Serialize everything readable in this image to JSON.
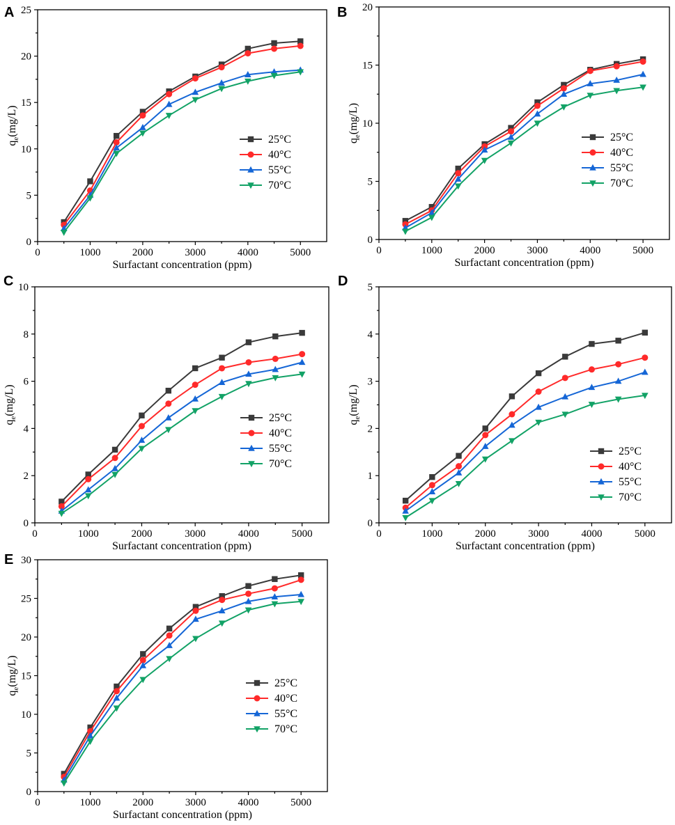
{
  "figure": {
    "series_names": [
      "25°C",
      "40°C",
      "55°C",
      "70°C"
    ],
    "series_colors": [
      "#3a3a3a",
      "#ff2a2a",
      "#1566d6",
      "#12a266"
    ],
    "series_markers": [
      "square",
      "circle",
      "triangle-up",
      "triangle-down"
    ]
  },
  "chart_data": [
    {
      "panel": "A",
      "type": "line",
      "xlabel": "Surfactant concentration (ppm)",
      "ylabel_main": "q",
      "ylabel_sub": "e",
      "ylabel_rest": "(mg/L)",
      "xlim": [
        0,
        5500
      ],
      "ylim": [
        0,
        25
      ],
      "xticks": [
        0,
        1000,
        2000,
        3000,
        4000,
        5000
      ],
      "yticks": [
        0,
        5,
        10,
        15,
        20,
        25
      ],
      "x": [
        500,
        1000,
        1500,
        2000,
        2500,
        3000,
        3500,
        4000,
        4500,
        5000
      ],
      "series": [
        {
          "name": "25°C",
          "values": [
            2.1,
            6.5,
            11.4,
            14.0,
            16.2,
            17.8,
            19.1,
            20.8,
            21.4,
            21.6
          ]
        },
        {
          "name": "40°C",
          "values": [
            1.8,
            5.5,
            10.7,
            13.6,
            15.9,
            17.6,
            18.8,
            20.3,
            20.8,
            21.1
          ]
        },
        {
          "name": "55°C",
          "values": [
            1.4,
            5.0,
            10.1,
            12.3,
            14.8,
            16.1,
            17.1,
            18.0,
            18.3,
            18.5
          ]
        },
        {
          "name": "70°C",
          "values": [
            1.0,
            4.7,
            9.5,
            11.7,
            13.6,
            15.3,
            16.5,
            17.3,
            17.9,
            18.3
          ]
        }
      ],
      "legend": "right"
    },
    {
      "panel": "B",
      "type": "line",
      "xlabel": "Surfactant concentration (ppm)",
      "ylabel_main": "q",
      "ylabel_sub": "e",
      "ylabel_rest": "(mg/L)",
      "xlim": [
        0,
        5500
      ],
      "ylim": [
        0,
        20
      ],
      "xticks": [
        0,
        1000,
        2000,
        3000,
        4000,
        5000
      ],
      "yticks": [
        0,
        5,
        10,
        15,
        20
      ],
      "x": [
        500,
        1000,
        1500,
        2000,
        2500,
        3000,
        3500,
        4000,
        4500,
        5000
      ],
      "series": [
        {
          "name": "25°C",
          "values": [
            1.6,
            2.8,
            6.1,
            8.2,
            9.6,
            11.8,
            13.3,
            14.6,
            15.1,
            15.5
          ]
        },
        {
          "name": "40°C",
          "values": [
            1.3,
            2.5,
            5.7,
            8.0,
            9.3,
            11.5,
            13.0,
            14.5,
            14.9,
            15.3
          ]
        },
        {
          "name": "55°C",
          "values": [
            1.0,
            2.3,
            5.2,
            7.7,
            8.8,
            10.8,
            12.5,
            13.4,
            13.7,
            14.2
          ]
        },
        {
          "name": "70°C",
          "values": [
            0.7,
            1.9,
            4.6,
            6.8,
            8.3,
            10.0,
            11.4,
            12.4,
            12.8,
            13.1
          ]
        }
      ],
      "legend": "right"
    },
    {
      "panel": "C",
      "type": "line",
      "xlabel": "Surfactant concentration (ppm)",
      "ylabel_main": "q",
      "ylabel_sub": "e",
      "ylabel_rest": "(mg/L)",
      "xlim": [
        0,
        5500
      ],
      "ylim": [
        0,
        10
      ],
      "xticks": [
        0,
        1000,
        2000,
        3000,
        4000,
        5000
      ],
      "yticks": [
        0,
        2,
        4,
        6,
        8,
        10
      ],
      "x": [
        500,
        1000,
        1500,
        2000,
        2500,
        3000,
        3500,
        4000,
        4500,
        5000
      ],
      "series": [
        {
          "name": "25°C",
          "values": [
            0.9,
            2.05,
            3.1,
            4.55,
            5.6,
            6.55,
            7.0,
            7.65,
            7.9,
            8.05
          ]
        },
        {
          "name": "40°C",
          "values": [
            0.7,
            1.85,
            2.75,
            4.1,
            5.05,
            5.85,
            6.55,
            6.8,
            6.95,
            7.15
          ]
        },
        {
          "name": "55°C",
          "values": [
            0.5,
            1.4,
            2.3,
            3.5,
            4.45,
            5.25,
            5.95,
            6.3,
            6.5,
            6.8
          ]
        },
        {
          "name": "70°C",
          "values": [
            0.4,
            1.15,
            2.05,
            3.15,
            3.95,
            4.75,
            5.35,
            5.9,
            6.15,
            6.3
          ]
        }
      ],
      "legend": "right"
    },
    {
      "panel": "D",
      "type": "line",
      "xlabel": "Surfactant concentration (ppm)",
      "ylabel_main": "q",
      "ylabel_sub": "e",
      "ylabel_rest": "(mg/L)",
      "xlim": [
        0,
        5500
      ],
      "ylim": [
        0,
        5
      ],
      "xticks": [
        0,
        1000,
        2000,
        3000,
        4000,
        5000
      ],
      "yticks": [
        0,
        1,
        2,
        3,
        4,
        5
      ],
      "x": [
        500,
        1000,
        1500,
        2000,
        2500,
        3000,
        3500,
        4000,
        4500,
        5000
      ],
      "series": [
        {
          "name": "25°C",
          "values": [
            0.47,
            0.97,
            1.42,
            2.0,
            2.68,
            3.17,
            3.52,
            3.79,
            3.86,
            4.03
          ]
        },
        {
          "name": "40°C",
          "values": [
            0.32,
            0.8,
            1.2,
            1.86,
            2.3,
            2.78,
            3.07,
            3.25,
            3.36,
            3.5
          ]
        },
        {
          "name": "55°C",
          "values": [
            0.25,
            0.66,
            1.06,
            1.62,
            2.07,
            2.45,
            2.67,
            2.87,
            3.0,
            3.19
          ]
        },
        {
          "name": "70°C",
          "values": [
            0.11,
            0.47,
            0.83,
            1.35,
            1.74,
            2.13,
            2.3,
            2.51,
            2.62,
            2.7
          ]
        }
      ],
      "legend": "right"
    },
    {
      "panel": "E",
      "type": "line",
      "xlabel": "Surfactant concentration (ppm)",
      "ylabel_main": "q",
      "ylabel_sub": "e",
      "ylabel_rest": "(mg/L)",
      "xlim": [
        0,
        5500
      ],
      "ylim": [
        0,
        30
      ],
      "xticks": [
        0,
        1000,
        2000,
        3000,
        4000,
        5000
      ],
      "yticks": [
        0,
        5,
        10,
        15,
        20,
        25,
        30
      ],
      "x": [
        500,
        1000,
        1500,
        2000,
        2500,
        3000,
        3500,
        4000,
        4500,
        5000
      ],
      "series": [
        {
          "name": "25°C",
          "values": [
            2.3,
            8.3,
            13.6,
            17.8,
            21.1,
            23.9,
            25.3,
            26.6,
            27.5,
            28.0
          ]
        },
        {
          "name": "40°C",
          "values": [
            1.9,
            7.8,
            13.0,
            17.0,
            20.2,
            23.4,
            24.8,
            25.6,
            26.3,
            27.4
          ]
        },
        {
          "name": "55°C",
          "values": [
            1.5,
            7.2,
            12.1,
            16.3,
            18.9,
            22.3,
            23.4,
            24.6,
            25.2,
            25.5
          ]
        },
        {
          "name": "70°C",
          "values": [
            1.1,
            6.5,
            10.8,
            14.5,
            17.2,
            19.8,
            21.8,
            23.5,
            24.3,
            24.6
          ]
        }
      ],
      "legend": "right"
    }
  ]
}
